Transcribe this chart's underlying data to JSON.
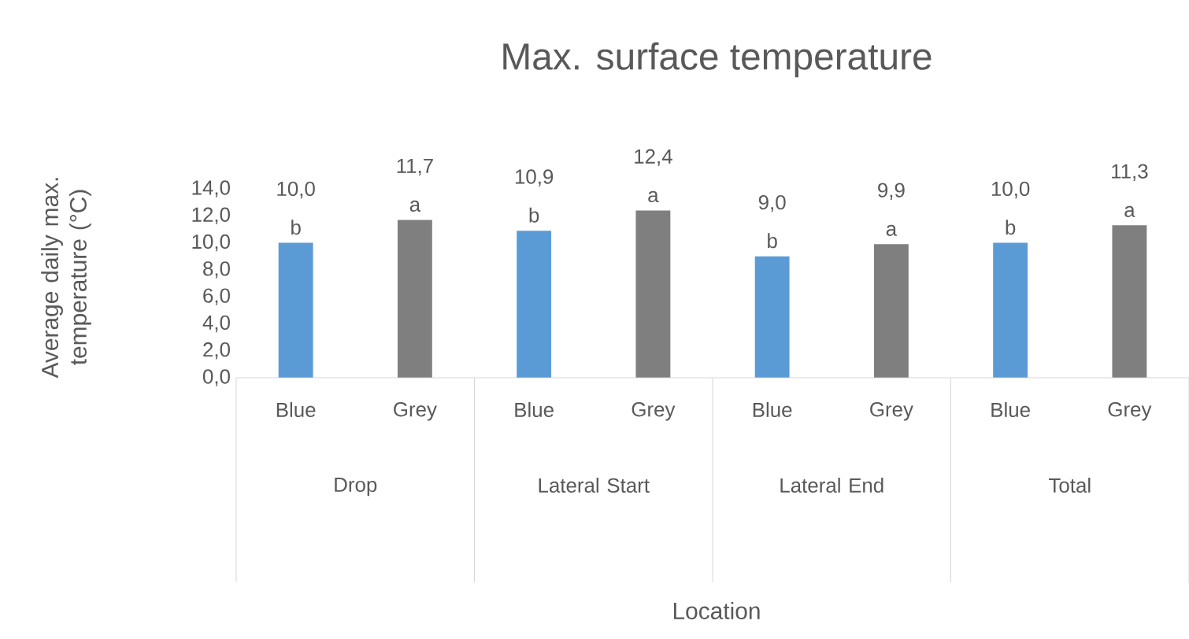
{
  "chart_data": {
    "type": "bar",
    "title": "Max. surface temperature",
    "xlabel": "Location",
    "ylabel": "Average daily max. temperature (°C)",
    "categories": [
      "Drop",
      "Lateral Start",
      "Lateral End",
      "Total"
    ],
    "series": [
      {
        "name": "Blue",
        "color": "#5b9bd5",
        "values": [
          10.0,
          10.9,
          9.0,
          10.0
        ],
        "value_labels": [
          "10,0",
          "10,9",
          "9,0",
          "10,0"
        ]
      },
      {
        "name": "Grey",
        "color": "#7f7f7f",
        "values": [
          11.7,
          12.4,
          9.9,
          11.3
        ],
        "value_labels": [
          "11,7",
          "12,4",
          "9,9",
          "11,3"
        ]
      }
    ],
    "ylim": [
      0,
      14
    ],
    "yticks": [
      {
        "value": 0,
        "label": "0,0"
      },
      {
        "value": 2,
        "label": "2,0"
      },
      {
        "value": 4,
        "label": "4,0"
      },
      {
        "value": 6,
        "label": "6,0"
      },
      {
        "value": 8,
        "label": "8,0"
      },
      {
        "value": 10,
        "label": "10,0"
      },
      {
        "value": 12,
        "label": "12,0"
      },
      {
        "value": 14,
        "label": "14,0"
      }
    ],
    "annotations": [
      "b",
      "a",
      "b",
      "a",
      "b",
      "a",
      "b",
      "a"
    ]
  }
}
